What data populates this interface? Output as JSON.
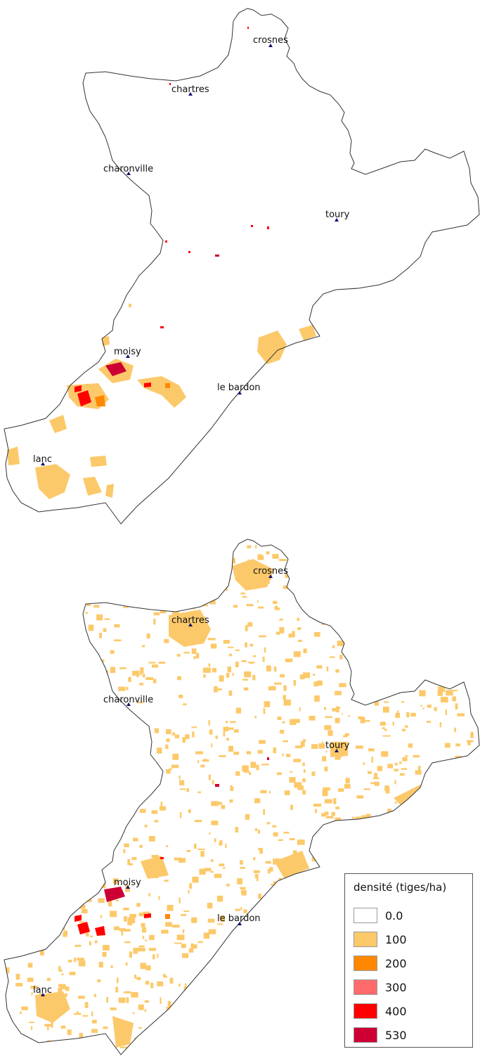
{
  "towns": [
    {
      "name": "crosnes"
    },
    {
      "name": "chartres"
    },
    {
      "name": "charonville"
    },
    {
      "name": "toury"
    },
    {
      "name": "moisy"
    },
    {
      "name": "le bardon"
    },
    {
      "name": "lanc"
    }
  ],
  "legend": {
    "title": "densité (tiges/ha)",
    "classes": [
      {
        "label": "0.0",
        "color": "#ffffff"
      },
      {
        "label": "100",
        "color": "#fcc96a"
      },
      {
        "label": "200",
        "color": "#ff8800"
      },
      {
        "label": "300",
        "color": "#ff6b6b"
      },
      {
        "label": "400",
        "color": "#ff0000"
      },
      {
        "label": "530",
        "color": "#cc0033"
      }
    ]
  },
  "colors": {
    "boundary": "#333333",
    "town_marker": "#101070"
  }
}
